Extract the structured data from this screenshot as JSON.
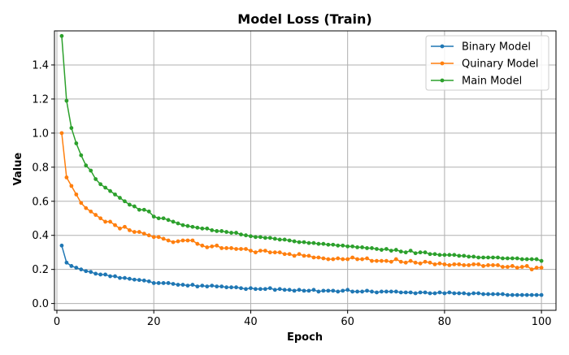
{
  "chart_data": {
    "type": "line",
    "title": "Model Loss (Train)",
    "xlabel": "Epoch",
    "ylabel": "Value",
    "xlim": [
      -0.5,
      103
    ],
    "ylim": [
      -0.04,
      1.6
    ],
    "xticks": [
      0,
      20,
      40,
      60,
      80,
      100
    ],
    "yticks": [
      0.0,
      0.2,
      0.4,
      0.6,
      0.8,
      1.0,
      1.2,
      1.4
    ],
    "grid": true,
    "legend_position": "top-right",
    "x": [
      1,
      2,
      3,
      4,
      5,
      6,
      7,
      8,
      9,
      10,
      11,
      12,
      13,
      14,
      15,
      16,
      17,
      18,
      19,
      20,
      21,
      22,
      23,
      24,
      25,
      26,
      27,
      28,
      29,
      30,
      31,
      32,
      33,
      34,
      35,
      36,
      37,
      38,
      39,
      40,
      41,
      42,
      43,
      44,
      45,
      46,
      47,
      48,
      49,
      50,
      51,
      52,
      53,
      54,
      55,
      56,
      57,
      58,
      59,
      60,
      61,
      62,
      63,
      64,
      65,
      66,
      67,
      68,
      69,
      70,
      71,
      72,
      73,
      74,
      75,
      76,
      77,
      78,
      79,
      80,
      81,
      82,
      83,
      84,
      85,
      86,
      87,
      88,
      89,
      90,
      91,
      92,
      93,
      94,
      95,
      96,
      97,
      98,
      99,
      100
    ],
    "series": [
      {
        "name": "Binary Model",
        "color": "#1f77b4",
        "values": [
          0.34,
          0.24,
          0.22,
          0.21,
          0.2,
          0.19,
          0.185,
          0.175,
          0.17,
          0.17,
          0.16,
          0.16,
          0.15,
          0.15,
          0.145,
          0.14,
          0.138,
          0.135,
          0.13,
          0.12,
          0.12,
          0.12,
          0.12,
          0.115,
          0.11,
          0.11,
          0.105,
          0.11,
          0.1,
          0.105,
          0.1,
          0.105,
          0.1,
          0.1,
          0.095,
          0.095,
          0.095,
          0.09,
          0.085,
          0.09,
          0.085,
          0.085,
          0.085,
          0.09,
          0.08,
          0.085,
          0.08,
          0.08,
          0.075,
          0.08,
          0.075,
          0.075,
          0.08,
          0.07,
          0.075,
          0.075,
          0.075,
          0.07,
          0.075,
          0.08,
          0.07,
          0.07,
          0.07,
          0.075,
          0.07,
          0.065,
          0.07,
          0.07,
          0.07,
          0.07,
          0.065,
          0.065,
          0.065,
          0.06,
          0.065,
          0.065,
          0.06,
          0.06,
          0.065,
          0.06,
          0.065,
          0.06,
          0.06,
          0.06,
          0.055,
          0.06,
          0.06,
          0.055,
          0.055,
          0.055,
          0.055,
          0.055,
          0.05,
          0.05,
          0.05,
          0.05,
          0.05,
          0.05,
          0.05,
          0.05
        ]
      },
      {
        "name": "Quinary Model",
        "color": "#ff7f0e",
        "values": [
          1.0,
          0.74,
          0.69,
          0.64,
          0.59,
          0.56,
          0.54,
          0.52,
          0.5,
          0.48,
          0.48,
          0.46,
          0.44,
          0.45,
          0.43,
          0.42,
          0.42,
          0.41,
          0.4,
          0.39,
          0.39,
          0.38,
          0.37,
          0.36,
          0.365,
          0.37,
          0.37,
          0.37,
          0.35,
          0.34,
          0.33,
          0.335,
          0.34,
          0.325,
          0.325,
          0.325,
          0.32,
          0.32,
          0.32,
          0.31,
          0.3,
          0.31,
          0.31,
          0.3,
          0.3,
          0.3,
          0.29,
          0.29,
          0.28,
          0.29,
          0.28,
          0.28,
          0.27,
          0.27,
          0.265,
          0.26,
          0.26,
          0.265,
          0.26,
          0.26,
          0.27,
          0.26,
          0.26,
          0.265,
          0.25,
          0.25,
          0.25,
          0.25,
          0.245,
          0.26,
          0.245,
          0.24,
          0.25,
          0.24,
          0.235,
          0.245,
          0.24,
          0.23,
          0.235,
          0.23,
          0.225,
          0.23,
          0.23,
          0.225,
          0.225,
          0.23,
          0.23,
          0.22,
          0.225,
          0.225,
          0.225,
          0.215,
          0.215,
          0.22,
          0.21,
          0.215,
          0.22,
          0.2,
          0.21,
          0.21
        ]
      },
      {
        "name": "Main Model",
        "color": "#2ca02c",
        "values": [
          1.57,
          1.19,
          1.03,
          0.94,
          0.87,
          0.81,
          0.78,
          0.73,
          0.7,
          0.68,
          0.66,
          0.64,
          0.62,
          0.6,
          0.58,
          0.57,
          0.55,
          0.55,
          0.54,
          0.51,
          0.5,
          0.5,
          0.49,
          0.48,
          0.47,
          0.46,
          0.455,
          0.45,
          0.445,
          0.44,
          0.44,
          0.43,
          0.425,
          0.425,
          0.42,
          0.415,
          0.415,
          0.405,
          0.4,
          0.395,
          0.39,
          0.39,
          0.385,
          0.385,
          0.38,
          0.375,
          0.375,
          0.37,
          0.365,
          0.36,
          0.36,
          0.355,
          0.355,
          0.35,
          0.35,
          0.345,
          0.345,
          0.34,
          0.34,
          0.335,
          0.335,
          0.33,
          0.33,
          0.325,
          0.325,
          0.32,
          0.315,
          0.32,
          0.31,
          0.315,
          0.305,
          0.3,
          0.31,
          0.295,
          0.3,
          0.3,
          0.29,
          0.29,
          0.285,
          0.285,
          0.285,
          0.285,
          0.28,
          0.28,
          0.275,
          0.275,
          0.27,
          0.27,
          0.27,
          0.27,
          0.27,
          0.265,
          0.265,
          0.265,
          0.265,
          0.26,
          0.26,
          0.26,
          0.26,
          0.25
        ]
      }
    ]
  }
}
